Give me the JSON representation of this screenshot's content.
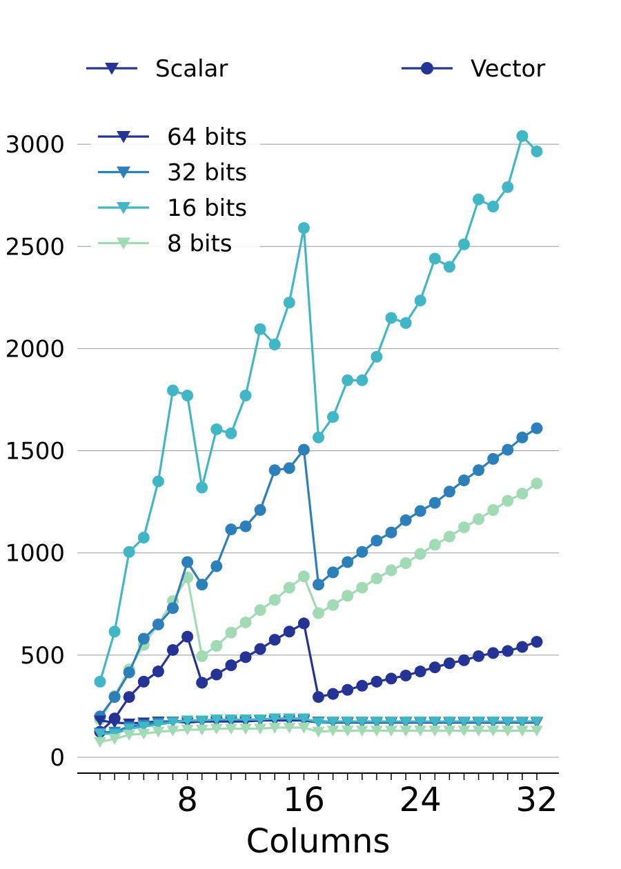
{
  "chart_data": {
    "type": "line",
    "xlabel": "Columns",
    "ylabel": "",
    "title": "",
    "xlim": [
      1,
      32
    ],
    "ylim": [
      0,
      3000
    ],
    "x_ticks_major": [
      8,
      16,
      24,
      32
    ],
    "y_ticks": [
      0,
      500,
      1000,
      1500,
      2000,
      2500,
      3000
    ],
    "grid": "horizontal",
    "legend_placement": "top",
    "style_legend": [
      {
        "label": "Scalar",
        "marker": "triangle-down"
      },
      {
        "label": "Vector",
        "marker": "circle"
      }
    ],
    "color_legend": [
      {
        "label": "64 bits",
        "color": "#253494"
      },
      {
        "label": "32 bits",
        "color": "#2c7fb8"
      },
      {
        "label": "16 bits",
        "color": "#41b6c4"
      },
      {
        "label": "8 bits",
        "color": "#a1dab4"
      }
    ],
    "x": [
      2,
      3,
      4,
      5,
      6,
      7,
      8,
      9,
      10,
      11,
      12,
      13,
      14,
      15,
      16,
      17,
      18,
      19,
      20,
      21,
      22,
      23,
      24,
      25,
      26,
      27,
      28,
      29,
      30,
      31,
      32
    ],
    "series": [
      {
        "name": "8 bits",
        "style": "Vector",
        "color": "#a1dab4",
        "values": [
          185,
          300,
          430,
          550,
          650,
          765,
          880,
          495,
          545,
          610,
          660,
          720,
          770,
          830,
          885,
          705,
          745,
          790,
          830,
          875,
          915,
          950,
          995,
          1040,
          1080,
          1125,
          1165,
          1210,
          1255,
          1290,
          1340
        ]
      },
      {
        "name": "16 bits",
        "style": "Vector",
        "color": "#41b6c4",
        "values": [
          370,
          615,
          1005,
          1075,
          1350,
          1795,
          1770,
          1320,
          1605,
          1585,
          1770,
          2095,
          2020,
          2225,
          2590,
          1565,
          1665,
          1845,
          1845,
          1960,
          2150,
          2125,
          2235,
          2440,
          2400,
          2510,
          2730,
          2695,
          2790,
          3040,
          2965
        ]
      },
      {
        "name": "32 bits",
        "style": "Vector",
        "color": "#2c7fb8",
        "values": [
          200,
          295,
          415,
          580,
          650,
          730,
          955,
          845,
          935,
          1115,
          1130,
          1210,
          1405,
          1415,
          1505,
          845,
          905,
          955,
          1005,
          1060,
          1100,
          1160,
          1205,
          1245,
          1300,
          1355,
          1405,
          1460,
          1505,
          1565,
          1610
        ]
      },
      {
        "name": "64 bits",
        "style": "Vector",
        "color": "#253494",
        "values": [
          125,
          190,
          295,
          370,
          420,
          525,
          590,
          365,
          405,
          450,
          490,
          530,
          575,
          615,
          655,
          295,
          310,
          330,
          350,
          370,
          385,
          400,
          420,
          440,
          460,
          475,
          495,
          510,
          520,
          540,
          565
        ]
      },
      {
        "name": "64 bits",
        "style": "Scalar",
        "color": "#253494",
        "values": [
          180,
          170,
          165,
          170,
          175,
          175,
          170,
          175,
          175,
          175,
          175,
          180,
          180,
          180,
          180,
          170,
          170,
          170,
          170,
          170,
          170,
          170,
          170,
          170,
          170,
          170,
          170,
          170,
          170,
          170,
          170
        ]
      },
      {
        "name": "32 bits",
        "style": "Scalar",
        "color": "#2c7fb8",
        "values": [
          120,
          125,
          150,
          160,
          170,
          175,
          180,
          180,
          185,
          185,
          185,
          185,
          190,
          190,
          185,
          175,
          175,
          175,
          175,
          175,
          175,
          175,
          175,
          175,
          175,
          175,
          175,
          175,
          175,
          175,
          175
        ]
      },
      {
        "name": "16 bits",
        "style": "Scalar",
        "color": "#41b6c4",
        "values": [
          115,
          115,
          140,
          150,
          160,
          170,
          180,
          180,
          185,
          185,
          185,
          185,
          190,
          190,
          190,
          170,
          175,
          175,
          175,
          175,
          175,
          175,
          175,
          175,
          175,
          175,
          175,
          175,
          175,
          175,
          175
        ]
      },
      {
        "name": "8 bits",
        "style": "Scalar",
        "color": "#a1dab4",
        "values": [
          75,
          90,
          110,
          115,
          125,
          130,
          135,
          135,
          140,
          140,
          140,
          140,
          145,
          145,
          145,
          125,
          130,
          130,
          130,
          130,
          130,
          130,
          130,
          130,
          130,
          130,
          130,
          130,
          130,
          130,
          130
        ]
      }
    ]
  }
}
